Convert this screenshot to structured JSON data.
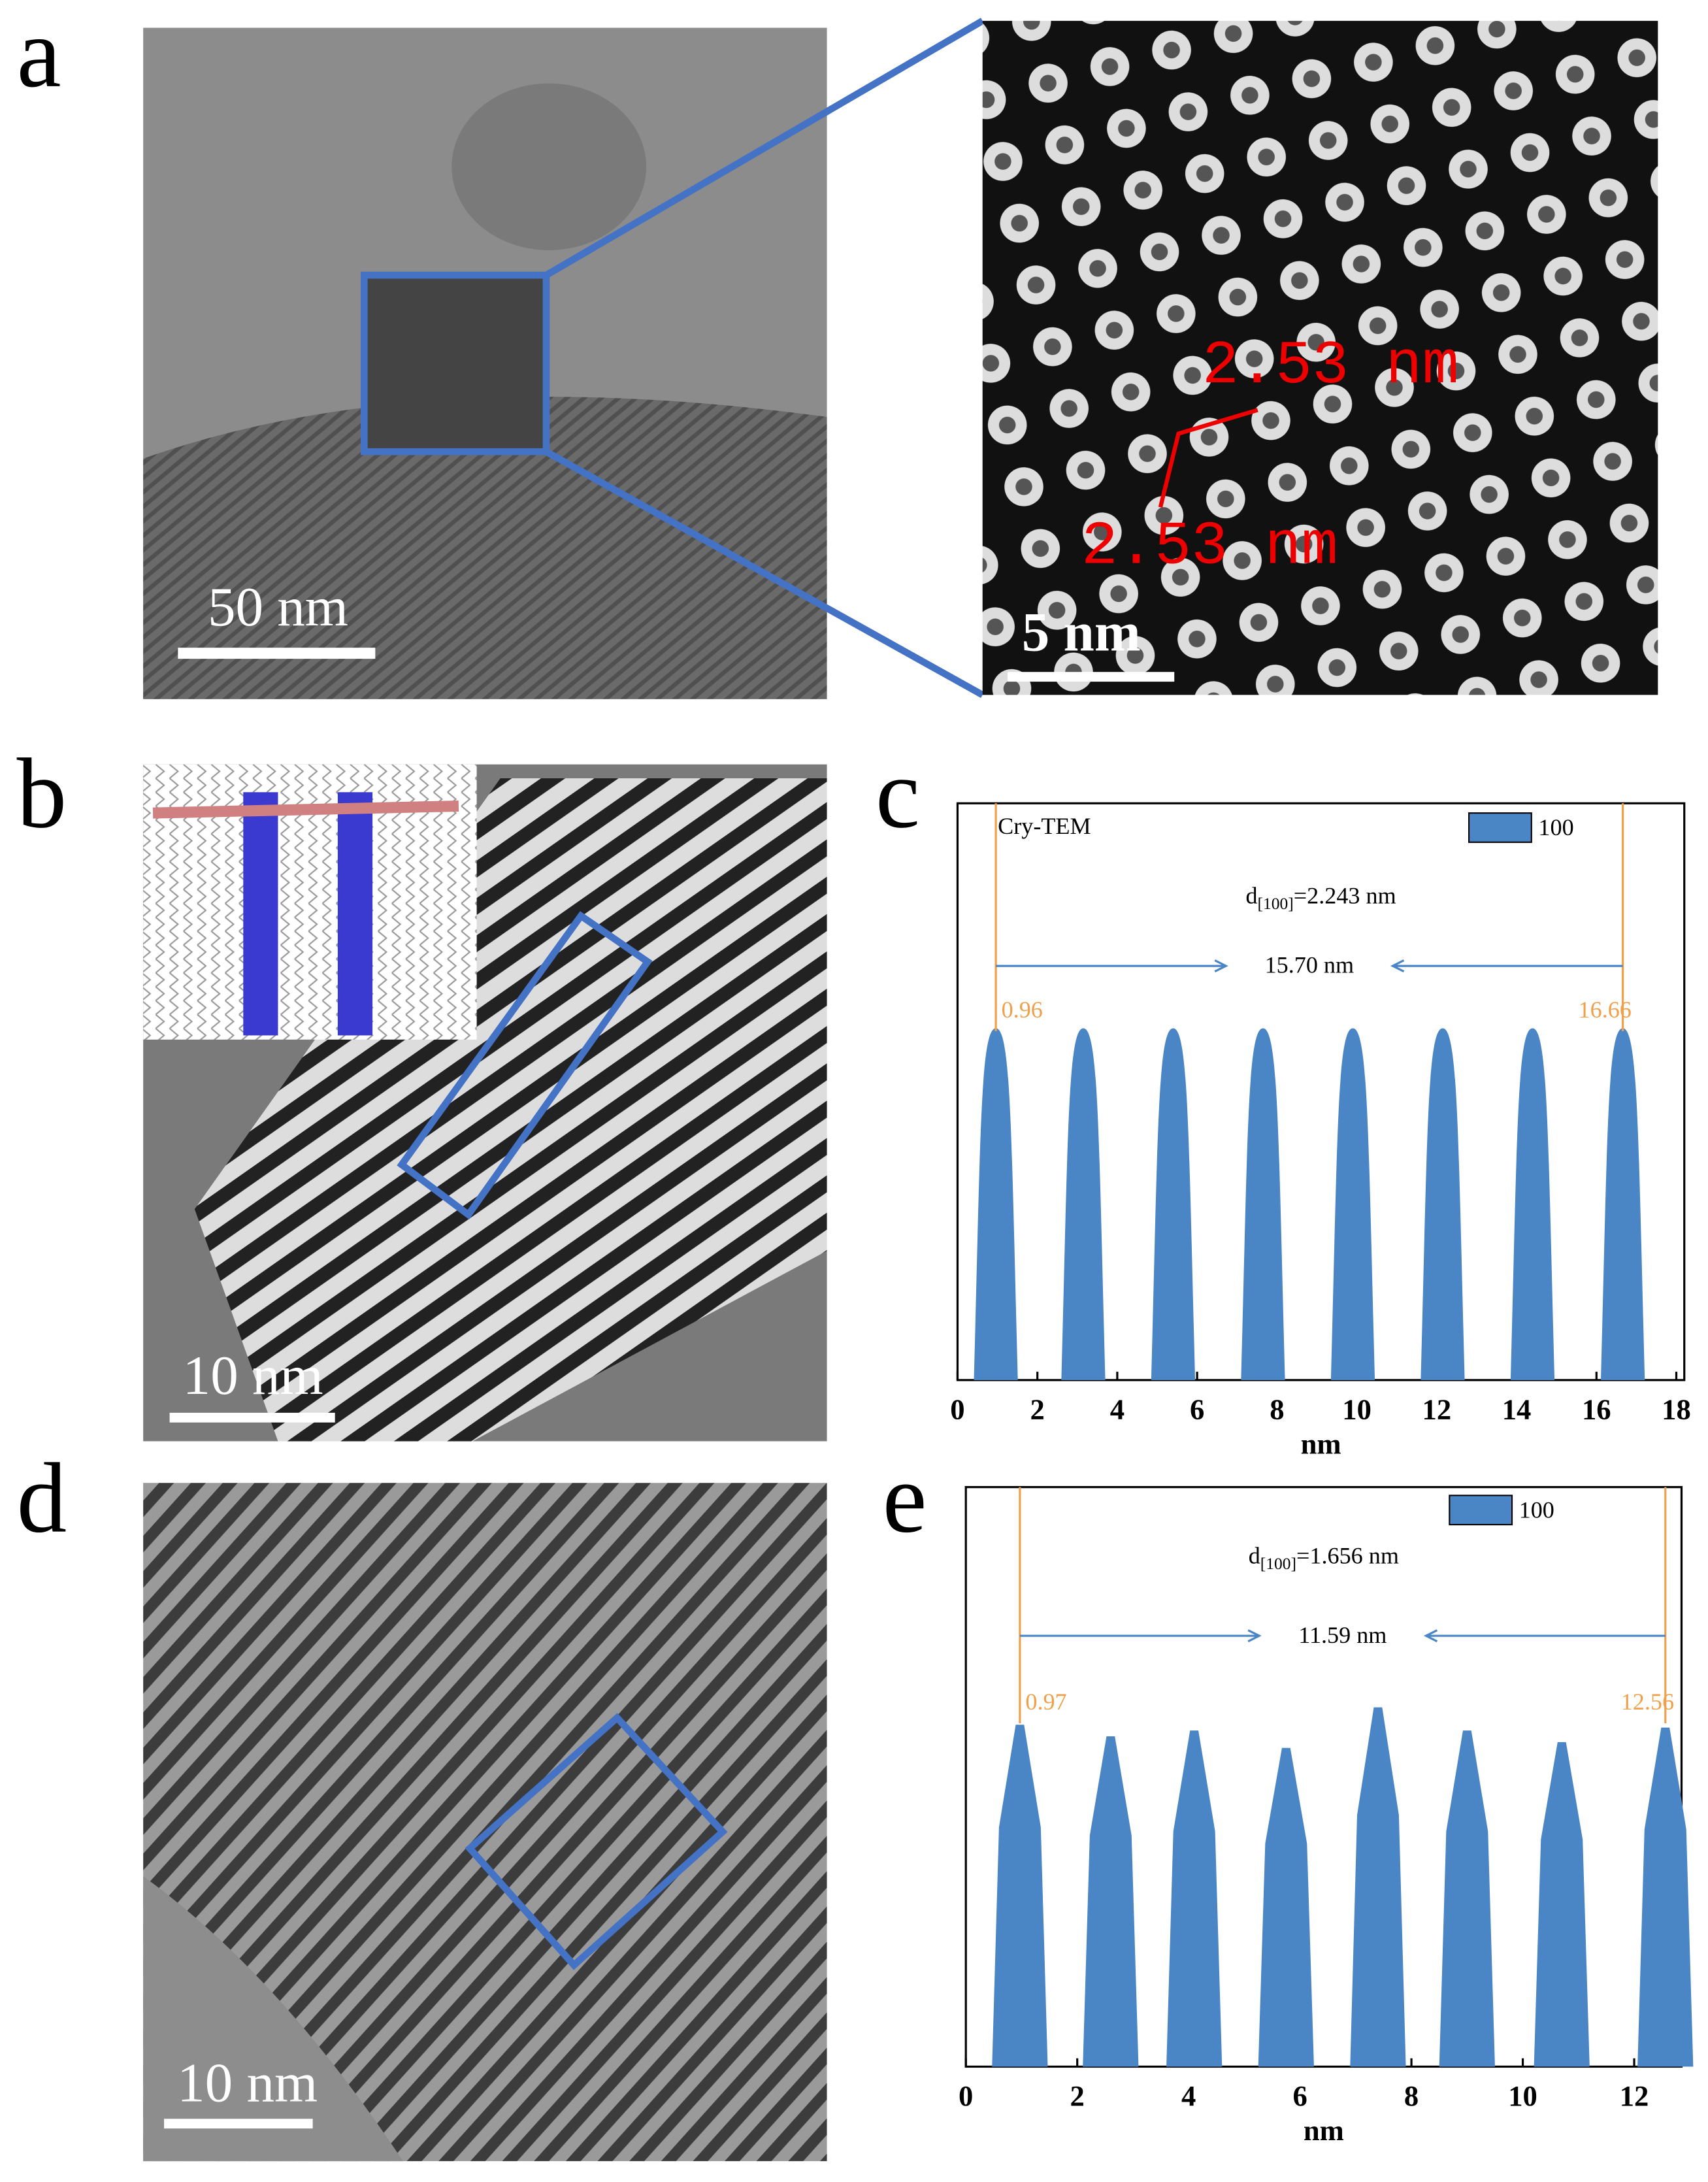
{
  "figure": {
    "panel_labels": [
      "a",
      "b",
      "c",
      "d",
      "e"
    ],
    "a_scale": "50 nm",
    "a_zoom_scale": "5 nm",
    "a_spacings": [
      "2.53 nm",
      "2.53 nm"
    ],
    "b_scale": "10 nm",
    "d_scale": "10 nm"
  },
  "chart_data": [
    {
      "type": "area",
      "annotation": "Cry-TEM",
      "d_label": {
        "main": "d",
        "sub": "[100]",
        "rest": "=2.243 nm"
      },
      "span_label": "15.70 nm",
      "markers": [
        0.96,
        16.66
      ],
      "marker_color": "#f0a04b",
      "x": [
        0.96,
        3.15,
        5.4,
        7.65,
        9.9,
        12.15,
        14.4,
        16.66
      ],
      "series": [
        {
          "name": "100",
          "color": "#4a86c5",
          "values": [
            0.61,
            0.61,
            0.61,
            0.61,
            0.61,
            0.61,
            0.61,
            0.61
          ]
        }
      ],
      "xlim": [
        0,
        18.2
      ],
      "xticks": [
        0,
        2,
        4,
        6,
        8,
        10,
        12,
        14,
        16,
        18
      ],
      "ylim": [
        0,
        1
      ],
      "xlabel": "nm"
    },
    {
      "type": "area",
      "d_label": {
        "main": "d",
        "sub": "[100]",
        "rest": "=1.656 nm"
      },
      "span_label": "11.59 nm",
      "markers": [
        0.97,
        12.56
      ],
      "marker_color": "#f0a04b",
      "x": [
        0.97,
        2.6,
        4.1,
        5.75,
        7.4,
        9.0,
        10.7,
        12.56
      ],
      "series": [
        {
          "name": "100",
          "color": "#4a86c5",
          "values": [
            0.59,
            0.57,
            0.58,
            0.55,
            0.62,
            0.58,
            0.56,
            0.585
          ]
        }
      ],
      "xlim": [
        0,
        12.85
      ],
      "xticks": [
        0,
        2,
        4,
        6,
        8,
        10,
        12
      ],
      "ylim": [
        0,
        1
      ],
      "xlabel": "nm"
    }
  ]
}
